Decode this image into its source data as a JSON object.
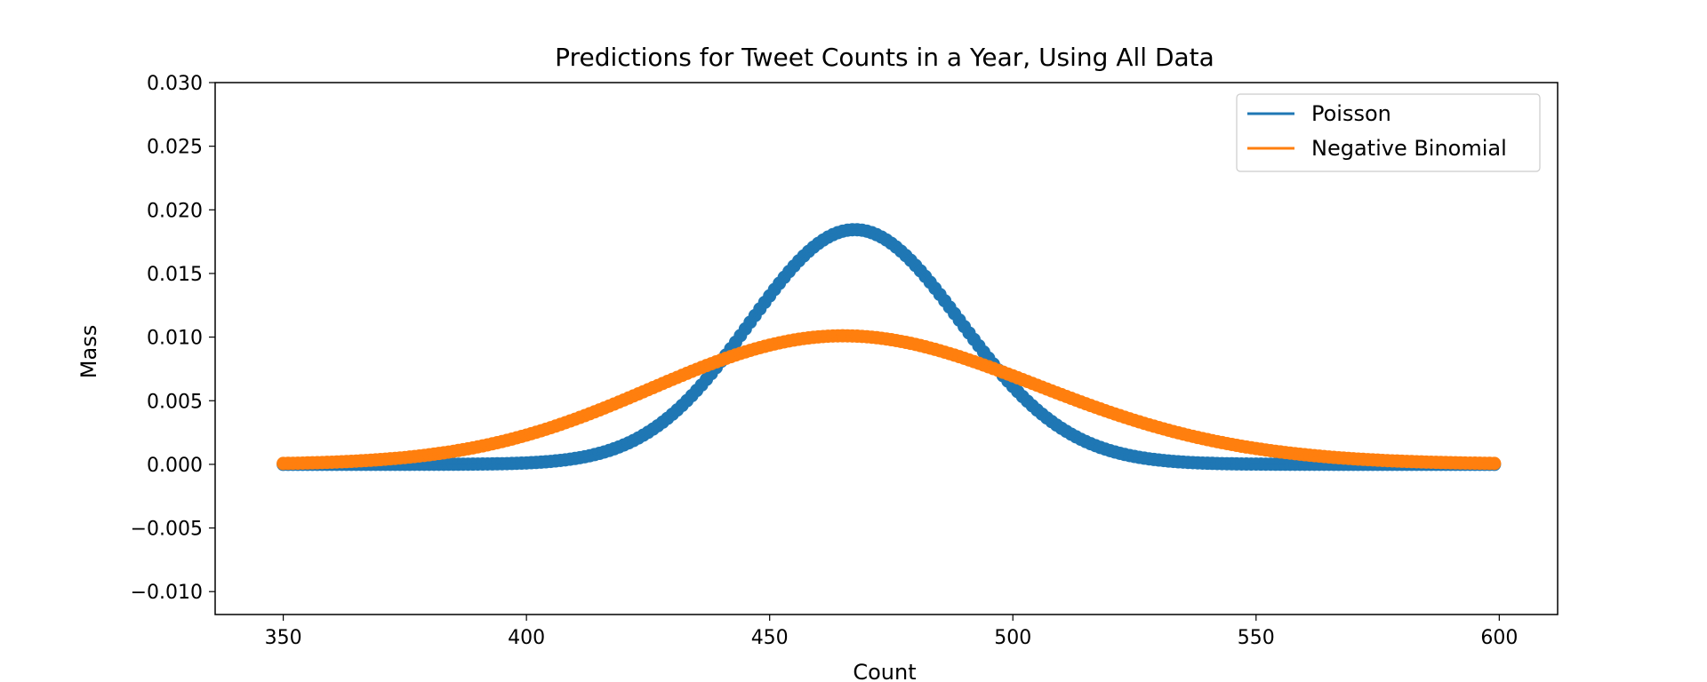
{
  "chart_data": {
    "type": "line",
    "title": "Predictions for Tweet Counts in a Year, Using All Data",
    "xlabel": "Count",
    "ylabel": "Mass",
    "xlim": [
      336,
      612
    ],
    "ylim": [
      -0.0118,
      0.03
    ],
    "xticks": [
      350,
      400,
      450,
      500,
      550,
      600
    ],
    "xtick_labels": [
      "350",
      "400",
      "450",
      "500",
      "550",
      "600"
    ],
    "yticks": [
      -0.01,
      -0.005,
      0.0,
      0.005,
      0.01,
      0.015,
      0.02,
      0.025,
      0.03
    ],
    "ytick_labels": [
      "−0.010",
      "−0.005",
      "0.000",
      "0.005",
      "0.010",
      "0.015",
      "0.020",
      "0.025",
      "0.030"
    ],
    "grid": false,
    "legend_position": "top-right",
    "series": [
      {
        "name": "Poisson",
        "color": "#1f77b4",
        "distribution": "poisson",
        "mean": 468,
        "x_range": [
          350,
          599
        ],
        "peak_mass": 0.0185
      },
      {
        "name": "Negative Binomial",
        "color": "#ff7f0e",
        "distribution": "negative-binomial",
        "mean": 468,
        "x_range": [
          350,
          599
        ],
        "peak_mass": 0.0101
      }
    ]
  }
}
